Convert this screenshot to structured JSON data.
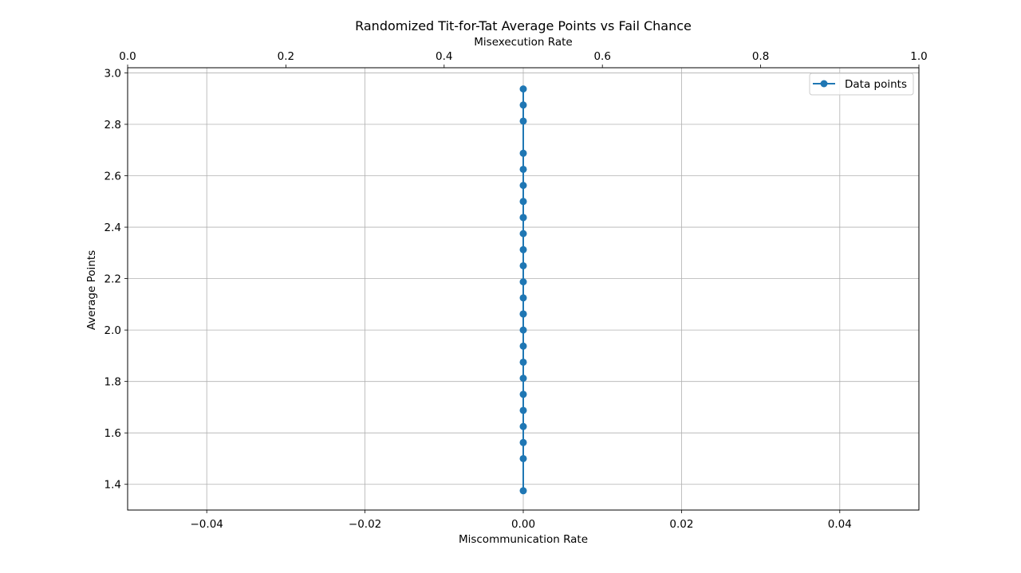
{
  "chart_data": {
    "type": "line",
    "title": "Randomized Tit-for-Tat Average Points vs Fail Chance",
    "xlabel": "Miscommunication Rate",
    "ylabel": "Average Points",
    "top_xlabel": "Misexecution Rate",
    "xlim": [
      -0.05,
      0.05
    ],
    "ylim": [
      1.3,
      3.02
    ],
    "top_xlim": [
      0.0,
      1.0
    ],
    "x_ticks": [
      -0.04,
      -0.02,
      0.0,
      0.02,
      0.04
    ],
    "x_tick_labels": [
      "−0.04",
      "−0.02",
      "0.00",
      "0.02",
      "0.04"
    ],
    "top_x_ticks": [
      0.0,
      0.2,
      0.4,
      0.6,
      0.8,
      1.0
    ],
    "top_x_tick_labels": [
      "0.0",
      "0.2",
      "0.4",
      "0.6",
      "0.8",
      "1.0"
    ],
    "y_ticks": [
      1.4,
      1.6,
      1.8,
      2.0,
      2.2,
      2.4,
      2.6,
      2.8,
      3.0
    ],
    "y_tick_labels": [
      "1.4",
      "1.6",
      "1.8",
      "2.0",
      "2.2",
      "2.4",
      "2.6",
      "2.8",
      "3.0"
    ],
    "grid": true,
    "legend_position": "top-right",
    "series": [
      {
        "name": "Data points",
        "color": "#1f77b4",
        "marker": "circle",
        "x": [
          0,
          0,
          0,
          0,
          0,
          0,
          0,
          0,
          0,
          0,
          0,
          0,
          0,
          0,
          0,
          0,
          0,
          0,
          0,
          0,
          0,
          0,
          0,
          0,
          0,
          0
        ],
        "y": [
          2.9375,
          2.875,
          2.8125,
          2.6875,
          2.625,
          2.5625,
          2.5,
          2.4375,
          2.375,
          2.3125,
          2.25,
          2.1875,
          2.125,
          2.0625,
          2.0,
          1.9375,
          1.875,
          1.8125,
          1.75,
          1.6875,
          1.625,
          1.5625,
          1.5,
          1.375,
          2.0625,
          2.4375
        ]
      }
    ]
  }
}
